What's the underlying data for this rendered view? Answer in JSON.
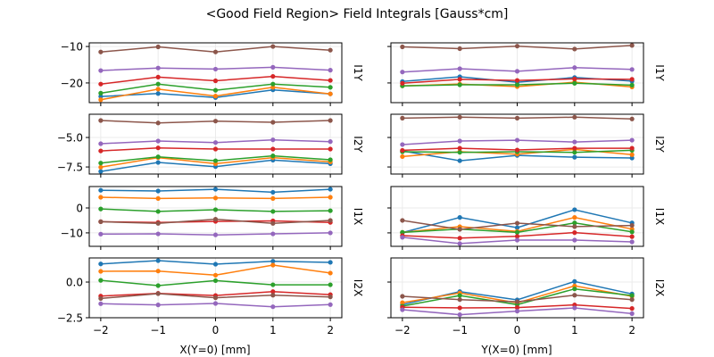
{
  "chart_data": {
    "type": "line",
    "title": "<Good Field Region> Field Integrals [Gauss*cm]",
    "x": [
      -2,
      -1,
      0,
      1,
      2
    ],
    "xlim": [
      -2.2,
      2.2
    ],
    "xticks": [
      "−2",
      "−1",
      "0",
      "1",
      "2"
    ],
    "xlabels": [
      "X(Y=0) [mm]",
      "Y(X=0) [mm]"
    ],
    "grid": true,
    "series_colors": [
      "#1f77b4",
      "#ff7f0e",
      "#2ca02c",
      "#d62728",
      "#9467bd",
      "#8c564b"
    ],
    "rows": [
      {
        "label": "I1Y",
        "ylim": [
          -25.4,
          -9.0
        ],
        "yticks": [
          -10,
          -20
        ],
        "ytick_labels": [
          "−10",
          "−20"
        ],
        "panels": [
          {
            "series": [
              {
                "values": [
                  -23.7,
                  -22.9,
                  -24.0,
                  -21.9,
                  -23.0
                ]
              },
              {
                "values": [
                  -24.6,
                  -21.7,
                  -23.6,
                  -21.2,
                  -23.0
                ]
              },
              {
                "values": [
                  -22.8,
                  -20.3,
                  -22.0,
                  -20.3,
                  -21.2
                ]
              },
              {
                "values": [
                  -20.3,
                  -18.4,
                  -19.4,
                  -18.2,
                  -19.3
                ]
              },
              {
                "values": [
                  -16.6,
                  -15.9,
                  -16.2,
                  -15.7,
                  -16.5
                ]
              },
              {
                "values": [
                  -11.5,
                  -10.1,
                  -11.5,
                  -10.0,
                  -11.0
                ]
              }
            ]
          },
          {
            "series": [
              {
                "values": [
                  -19.6,
                  -18.3,
                  -19.8,
                  -18.5,
                  -19.5
                ]
              },
              {
                "values": [
                  -20.8,
                  -20.3,
                  -21.0,
                  -19.8,
                  -21.1
                ]
              },
              {
                "values": [
                  -20.8,
                  -20.5,
                  -20.5,
                  -20.1,
                  -20.6
                ]
              },
              {
                "values": [
                  -20.1,
                  -19.0,
                  -19.3,
                  -18.9,
                  -19.0
                ]
              },
              {
                "values": [
                  -17.0,
                  -16.1,
                  -16.8,
                  -15.8,
                  -16.3
                ]
              },
              {
                "values": [
                  -10.1,
                  -10.6,
                  -9.9,
                  -10.7,
                  -9.7
                ]
              }
            ]
          }
        ]
      },
      {
        "label": "I2Y",
        "ylim": [
          -8.1,
          -3.03
        ],
        "yticks": [
          -5.0,
          -7.5
        ],
        "ytick_labels": [
          "−5.0",
          "−7.5"
        ],
        "panels": [
          {
            "series": [
              {
                "values": [
                  -7.88,
                  -7.12,
                  -7.47,
                  -6.92,
                  -7.22
                ]
              },
              {
                "values": [
                  -7.52,
                  -6.71,
                  -7.22,
                  -6.71,
                  -7.07
                ]
              },
              {
                "values": [
                  -7.17,
                  -6.64,
                  -6.97,
                  -6.56,
                  -6.89
                ]
              },
              {
                "values": [
                  -6.14,
                  -5.88,
                  -5.98,
                  -5.98,
                  -5.98
                ]
              },
              {
                "values": [
                  -5.53,
                  -5.3,
                  -5.43,
                  -5.2,
                  -5.35
                ]
              },
              {
                "values": [
                  -3.56,
                  -3.77,
                  -3.61,
                  -3.71,
                  -3.56
                ]
              }
            ]
          },
          {
            "series": [
              {
                "values": [
                  -6.14,
                  -6.97,
                  -6.52,
                  -6.67,
                  -6.74
                ]
              },
              {
                "values": [
                  -6.62,
                  -6.21,
                  -6.41,
                  -6.01,
                  -6.46
                ]
              },
              {
                "values": [
                  -6.21,
                  -6.26,
                  -6.21,
                  -6.26,
                  -6.09
                ]
              },
              {
                "values": [
                  -6.09,
                  -5.91,
                  -6.06,
                  -5.91,
                  -5.91
                ]
              },
              {
                "values": [
                  -5.6,
                  -5.3,
                  -5.23,
                  -5.38,
                  -5.23
                ]
              },
              {
                "values": [
                  -3.36,
                  -3.28,
                  -3.36,
                  -3.28,
                  -3.43
                ]
              }
            ]
          }
        ]
      },
      {
        "label": "I1X",
        "ylim": [
          -15.4,
          8.6
        ],
        "yticks": [
          0,
          -10
        ],
        "ytick_labels": [
          "0",
          "−10"
        ],
        "panels": [
          {
            "series": [
              {
                "values": [
                  7.1,
                  6.8,
                  7.5,
                  6.3,
                  7.5
                ]
              },
              {
                "values": [
                  4.3,
                  3.8,
                  4.0,
                  3.8,
                  4.3
                ]
              },
              {
                "values": [
                  -0.4,
                  -1.4,
                  -0.7,
                  -1.4,
                  -1.1
                ]
              },
              {
                "values": [
                  -5.5,
                  -5.8,
                  -5.4,
                  -5.2,
                  -5.8
                ]
              },
              {
                "values": [
                  -10.5,
                  -10.4,
                  -10.8,
                  -10.4,
                  -10.0
                ]
              },
              {
                "values": [
                  -5.5,
                  -6.2,
                  -4.5,
                  -6.2,
                  -5.0
                ]
              }
            ]
          },
          {
            "series": [
              {
                "values": [
                  -9.9,
                  -3.8,
                  -7.9,
                  -0.7,
                  -6.0
                ]
              },
              {
                "values": [
                  -9.8,
                  -7.5,
                  -9.4,
                  -3.8,
                  -8.5
                ]
              },
              {
                "values": [
                  -9.8,
                  -8.5,
                  -9.8,
                  -6.0,
                  -9.6
                ]
              },
              {
                "values": [
                  -11.1,
                  -12.1,
                  -11.4,
                  -9.9,
                  -11.5
                ]
              },
              {
                "values": [
                  -11.8,
                  -14.3,
                  -12.9,
                  -12.9,
                  -13.6
                ]
              },
              {
                "values": [
                  -5.0,
                  -8.6,
                  -6.1,
                  -7.5,
                  -7.0
                ]
              }
            ]
          }
        ]
      },
      {
        "label": "I2X",
        "ylim": [
          -2.5,
          1.69
        ],
        "yticks": [
          0.0,
          -2.5
        ],
        "ytick_labels": [
          "0.0",
          "−2.5"
        ],
        "panels": [
          {
            "series": [
              {
                "values": [
                  1.27,
                  1.5,
                  1.25,
                  1.46,
                  1.38
                ]
              },
              {
                "values": [
                  0.75,
                  0.77,
                  0.48,
                  1.19,
                  0.63
                ]
              },
              {
                "values": [
                  0.12,
                  -0.25,
                  0.1,
                  -0.19,
                  -0.19
                ]
              },
              {
                "values": [
                  -0.98,
                  -0.79,
                  -0.94,
                  -0.67,
                  -0.88
                ]
              },
              {
                "values": [
                  -1.52,
                  -1.6,
                  -1.5,
                  -1.73,
                  -1.58
                ]
              },
              {
                "values": [
                  -1.15,
                  -0.81,
                  -1.1,
                  -0.92,
                  -1.04
                ]
              }
            ]
          },
          {
            "series": [
              {
                "values": [
                  -1.58,
                  -0.67,
                  -1.25,
                  0.04,
                  -0.83
                ]
              },
              {
                "values": [
                  -1.44,
                  -0.77,
                  -1.46,
                  -0.27,
                  -1.0
                ]
              },
              {
                "values": [
                  -1.69,
                  -0.94,
                  -1.58,
                  -0.48,
                  -0.94
                ]
              },
              {
                "values": [
                  -1.77,
                  -1.81,
                  -1.79,
                  -1.6,
                  -1.85
                ]
              },
              {
                "values": [
                  -1.94,
                  -2.29,
                  -2.04,
                  -1.81,
                  -2.21
                ]
              },
              {
                "values": [
                  -1.0,
                  -1.23,
                  -1.38,
                  -0.92,
                  -1.23
                ]
              }
            ]
          }
        ]
      }
    ]
  }
}
